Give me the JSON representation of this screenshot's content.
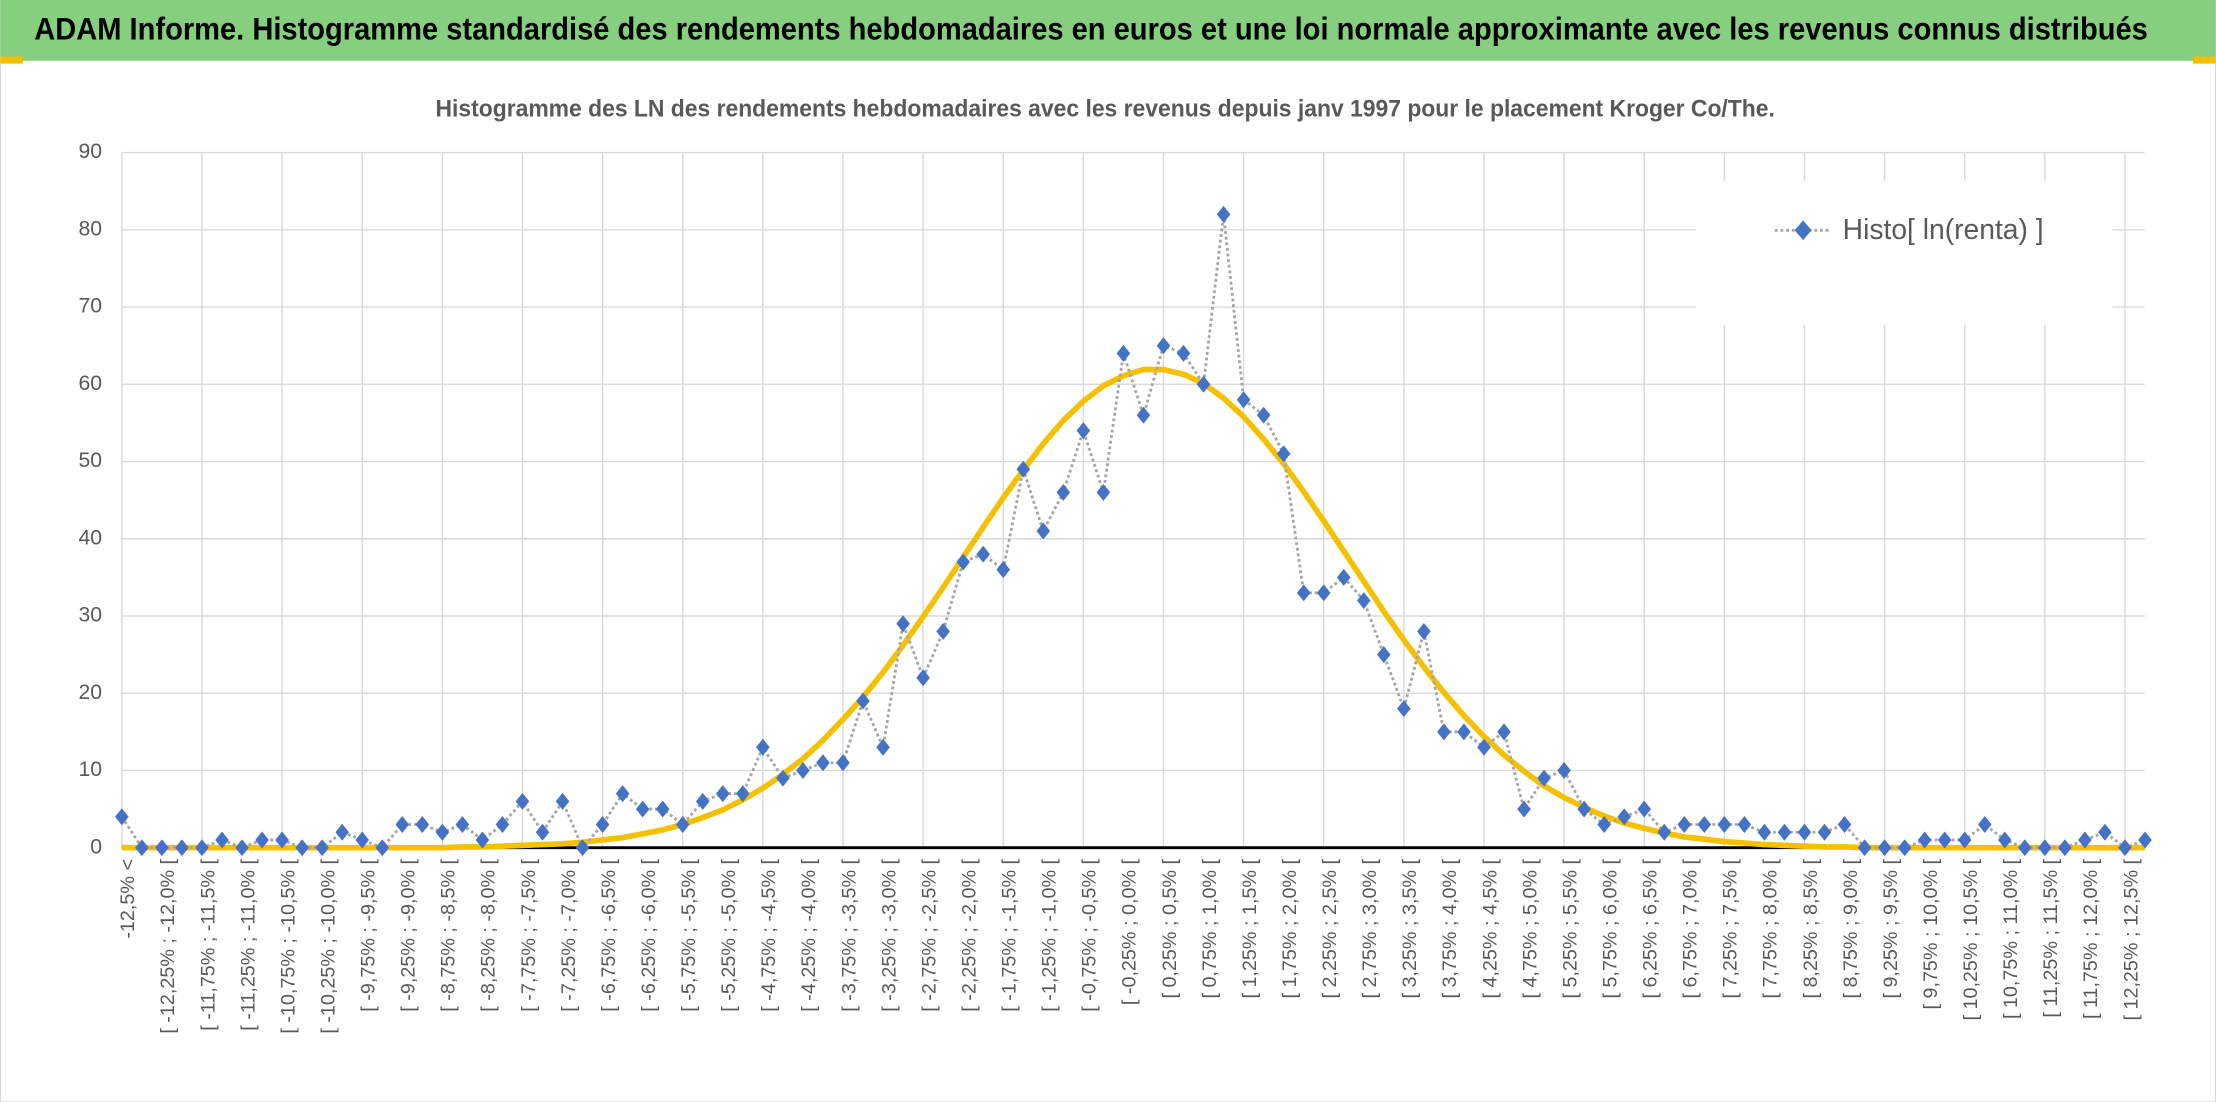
{
  "header": {
    "title": "ADAM Informe. Histogramme standardisé des rendements hebdomadaires en euros et une loi normale approximante avec les revenus connus distribués"
  },
  "chart_data": {
    "type": "line",
    "title": "Histogramme des LN des rendements hebdomadaires avec les revenus depuis janv 1997 pour le placement Kroger Co/The.",
    "categories": [
      "-12,5% <",
      null,
      "[ -12,25% ; -12,0% [",
      null,
      "[ -11,75% ; -11,5% [",
      null,
      "[ -11,25% ; -11,0% [",
      null,
      "[ -10,75% ; -10,5% [",
      null,
      "[ -10,25% ; -10,0% [",
      null,
      "[ -9,75% ; -9,5% [",
      null,
      "[ -9,25% ; -9,0% [",
      null,
      "[ -8,75% ; -8,5% [",
      null,
      "[ -8,25% ; -8,0% [",
      null,
      "[ -7,75% ; -7,5% [",
      null,
      "[ -7,25% ; -7,0% [",
      null,
      "[ -6,75% ; -6,5% [",
      null,
      "[ -6,25% ; -6,0% [",
      null,
      "[ -5,75% ; -5,5% [",
      null,
      "[ -5,25% ; -5,0% [",
      null,
      "[ -4,75% ; -4,5% [",
      null,
      "[ -4,25% ; -4,0% [",
      null,
      "[ -3,75% ; -3,5% [",
      null,
      "[ -3,25% ; -3,0% [",
      null,
      "[ -2,75% ; -2,5% [",
      null,
      "[ -2,25% ; -2,0% [",
      null,
      "[ -1,75% ; -1,5% [",
      null,
      "[ -1,25% ; -1,0% [",
      null,
      "[ -0,75% ; -0,5% [",
      null,
      "[ -0,25% ; 0,0% [",
      null,
      "[ 0,25% ; 0,5% [",
      null,
      "[ 0,75% ; 1,0% [",
      null,
      "[ 1,25% ; 1,5% [",
      null,
      "[ 1,75% ; 2,0% [",
      null,
      "[ 2,25% ; 2,5% [",
      null,
      "[ 2,75% ; 3,0% [",
      null,
      "[ 3,25% ; 3,5% [",
      null,
      "[ 3,75% ; 4,0% [",
      null,
      "[ 4,25% ; 4,5% [",
      null,
      "[ 4,75% ; 5,0% [",
      null,
      "[ 5,25% ; 5,5% [",
      null,
      "[ 5,75% ; 6,0% [",
      null,
      "[ 6,25% ; 6,5% [",
      null,
      "[ 6,75% ; 7,0% [",
      null,
      "[ 7,25% ; 7,5% [",
      null,
      "[ 7,75% ; 8,0% [",
      null,
      "[ 8,25% ; 8,5% [",
      null,
      "[ 8,75% ; 9,0% [",
      null,
      "[ 9,25% ; 9,5% [",
      null,
      "[ 9,75% ; 10,0% [",
      null,
      "[ 10,25% ; 10,5% [",
      null,
      "[ 10,75% ; 11,0% [",
      null,
      "[ 11,25% ; 11,5% [",
      null,
      "[ 11,75% ; 12,0% [",
      null,
      "[ 12,25% ; 12,5% [",
      null
    ],
    "series": [
      {
        "name": "Histo[ ln(renta) ]",
        "color": "#4472c4",
        "line_color": "#a5a5a5",
        "values": [
          4,
          0,
          0,
          0,
          0,
          1,
          0,
          1,
          1,
          0,
          0,
          2,
          1,
          0,
          3,
          3,
          2,
          3,
          1,
          3,
          6,
          2,
          6,
          0,
          3,
          7,
          5,
          5,
          3,
          6,
          7,
          7,
          13,
          9,
          10,
          11,
          11,
          19,
          13,
          29,
          22,
          28,
          37,
          38,
          36,
          49,
          41,
          46,
          54,
          46,
          64,
          56,
          65,
          64,
          60,
          82,
          58,
          56,
          51,
          33,
          33,
          35,
          32,
          25,
          18,
          28,
          15,
          15,
          13,
          15,
          5,
          9,
          10,
          5,
          3,
          4,
          5,
          2,
          3,
          3,
          3,
          3,
          2,
          2,
          2,
          2,
          3,
          0,
          0,
          0,
          1,
          1,
          1,
          3,
          1,
          0,
          0,
          0,
          1,
          2,
          0,
          1
        ]
      },
      {
        "color": "#f5c000",
        "values": [
          0,
          0,
          0,
          0,
          0,
          0,
          0,
          0,
          0,
          0,
          0,
          0,
          0,
          0,
          0,
          0,
          0,
          0.1,
          0.1,
          0.2,
          0.3,
          0.4,
          0.5,
          0.7,
          1.0,
          1.3,
          1.8,
          2.3,
          3.0,
          3.9,
          4.9,
          6.2,
          7.7,
          9.5,
          11.5,
          13.9,
          16.6,
          19.5,
          22.7,
          26.2,
          29.9,
          33.7,
          37.6,
          41.5,
          45.3,
          48.9,
          52.3,
          55.3,
          57.8,
          59.8,
          61.1,
          61.9,
          61.9,
          61.3,
          60.1,
          58.2,
          55.8,
          52.9,
          49.7,
          46.1,
          42.3,
          38.4,
          34.5,
          30.6,
          26.9,
          23.4,
          20.1,
          17.1,
          14.4,
          12.0,
          9.9,
          8.0,
          6.5,
          5.2,
          4.1,
          3.2,
          2.5,
          1.9,
          1.4,
          1.1,
          0.8,
          0.6,
          0.4,
          0.3,
          0.2,
          0.1,
          0.1,
          0,
          0,
          0,
          0,
          0,
          0,
          0,
          0,
          0,
          0,
          0,
          0,
          0,
          0,
          0
        ]
      }
    ],
    "ylim": [
      0,
      90
    ],
    "yticks": [
      0,
      10,
      20,
      30,
      40,
      50,
      60,
      70,
      80,
      90
    ],
    "grid": true,
    "legend": "top-right"
  }
}
